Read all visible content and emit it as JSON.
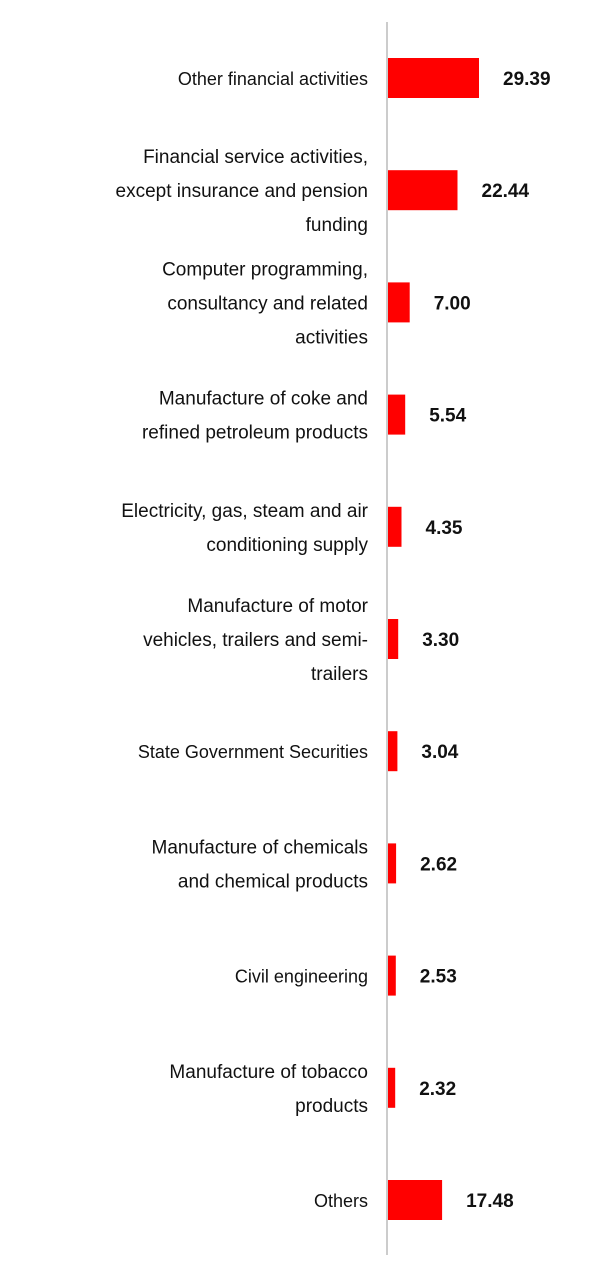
{
  "chart_data": {
    "type": "bar",
    "orientation": "horizontal",
    "title": "",
    "xlabel": "",
    "ylabel": "",
    "xlim": [
      0,
      40
    ],
    "grid": false,
    "bar_color": "#ff0000",
    "axis_color": "#cccccc",
    "categories": [
      "Other financial activities",
      "Financial service activities, except insurance and pension funding",
      "Computer programming, consultancy and related activities",
      "Manufacture of coke and refined petroleum products",
      "Electricity, gas, steam and air conditioning supply",
      "Manufacture of motor vehicles, trailers and semi-trailers",
      "State Government Securities",
      "Manufacture of chemicals and chemical products",
      "Civil engineering",
      "Manufacture of tobacco products",
      "Others"
    ],
    "category_lines": [
      [
        "Other financial activities"
      ],
      [
        "Financial service activities,",
        "except insurance and pension",
        "funding"
      ],
      [
        "Computer programming,",
        "consultancy and related",
        "activities"
      ],
      [
        "Manufacture of coke and",
        "refined petroleum products"
      ],
      [
        "Electricity, gas, steam and air",
        "conditioning supply"
      ],
      [
        "Manufacture of motor",
        "vehicles, trailers and semi-",
        "trailers"
      ],
      [
        "State Government Securities"
      ],
      [
        "Manufacture of chemicals",
        "and chemical products"
      ],
      [
        "Civil engineering"
      ],
      [
        "Manufacture of tobacco",
        "products"
      ],
      [
        "Others"
      ]
    ],
    "values": [
      29.39,
      22.44,
      7.0,
      5.54,
      4.35,
      3.3,
      3.04,
      2.62,
      2.53,
      2.32,
      17.48
    ],
    "value_labels": [
      "29.39",
      "22.44",
      "7.00",
      "5.54",
      "4.35",
      "3.30",
      "3.04",
      "2.62",
      "2.53",
      "2.32",
      "17.48"
    ]
  }
}
